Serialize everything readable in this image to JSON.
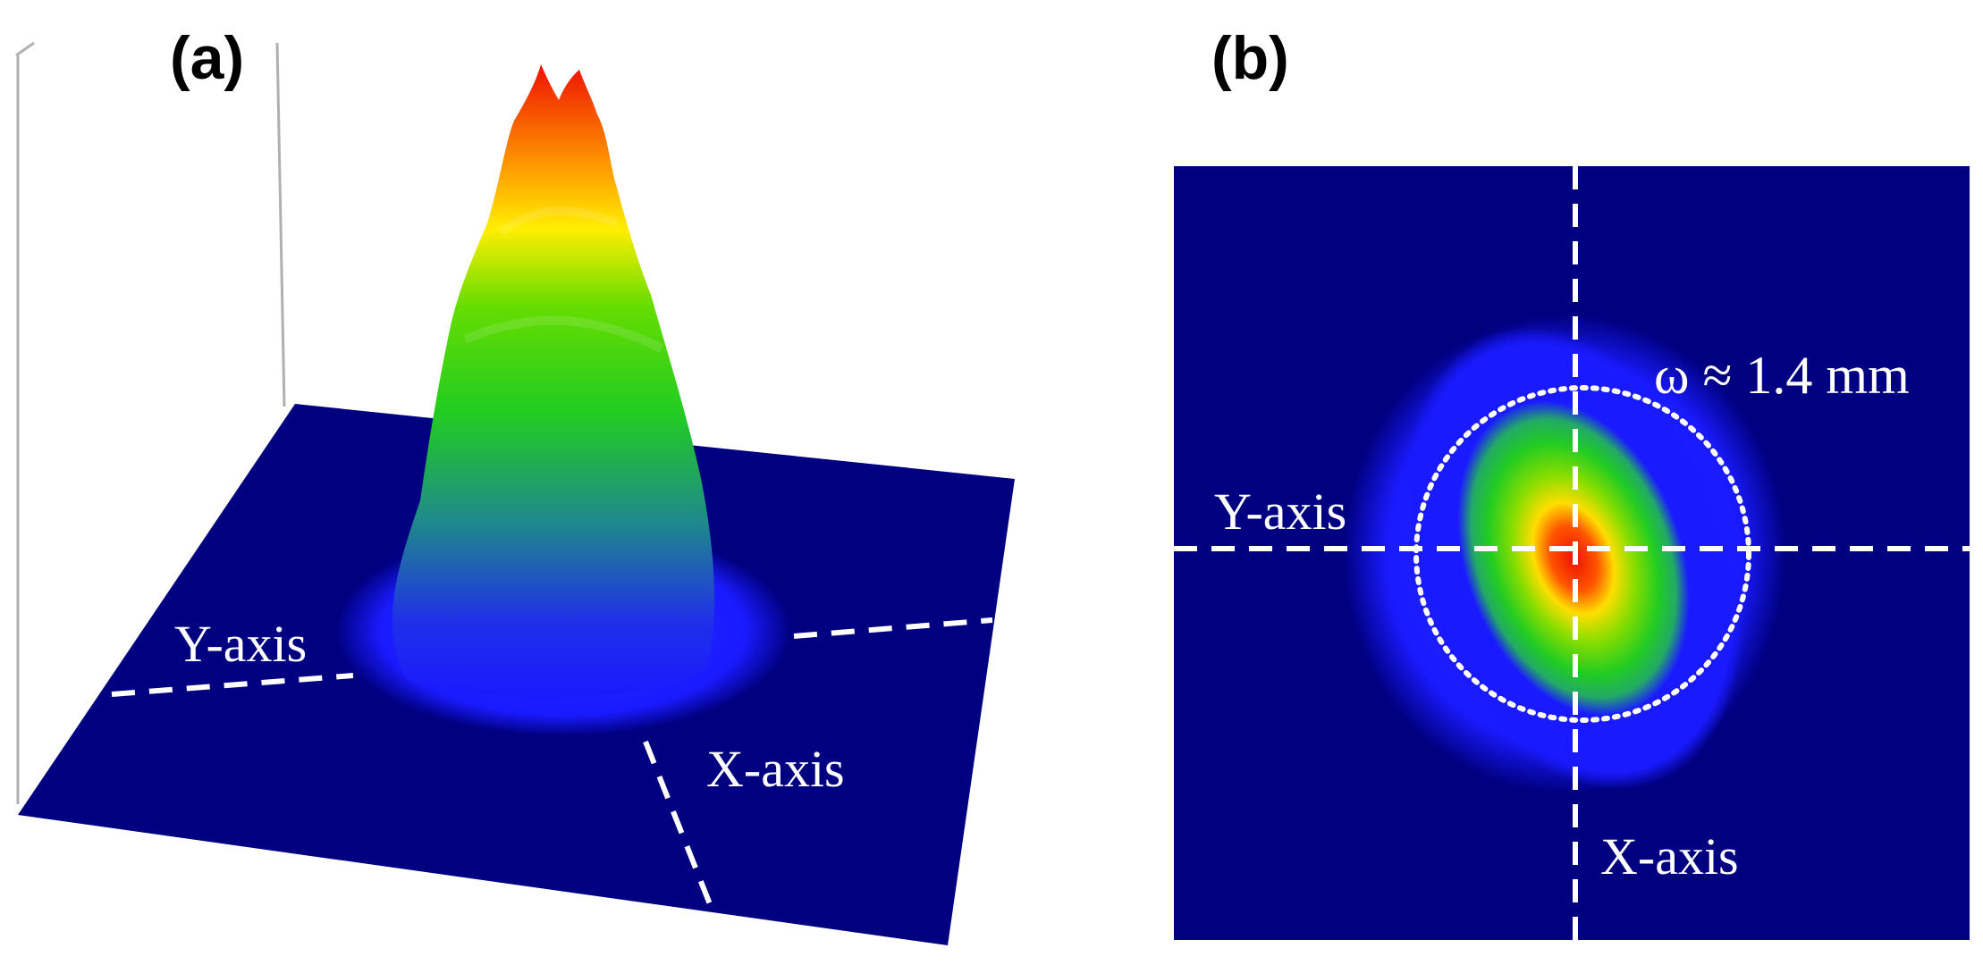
{
  "panel_a": {
    "label": "(a)",
    "y_axis_label": "Y-axis",
    "x_axis_label": "X-axis"
  },
  "panel_b": {
    "label": "(b)",
    "y_axis_label": "Y-axis",
    "x_axis_label": "X-axis",
    "beam_waist_label": "ω ≈ 1.4 mm"
  },
  "colors": {
    "background": "#000080",
    "low": "#1a1aff",
    "mid": "#22cc22",
    "high": "#ffdd00",
    "peak": "#ee1100",
    "annotation": "#ffffff"
  }
}
